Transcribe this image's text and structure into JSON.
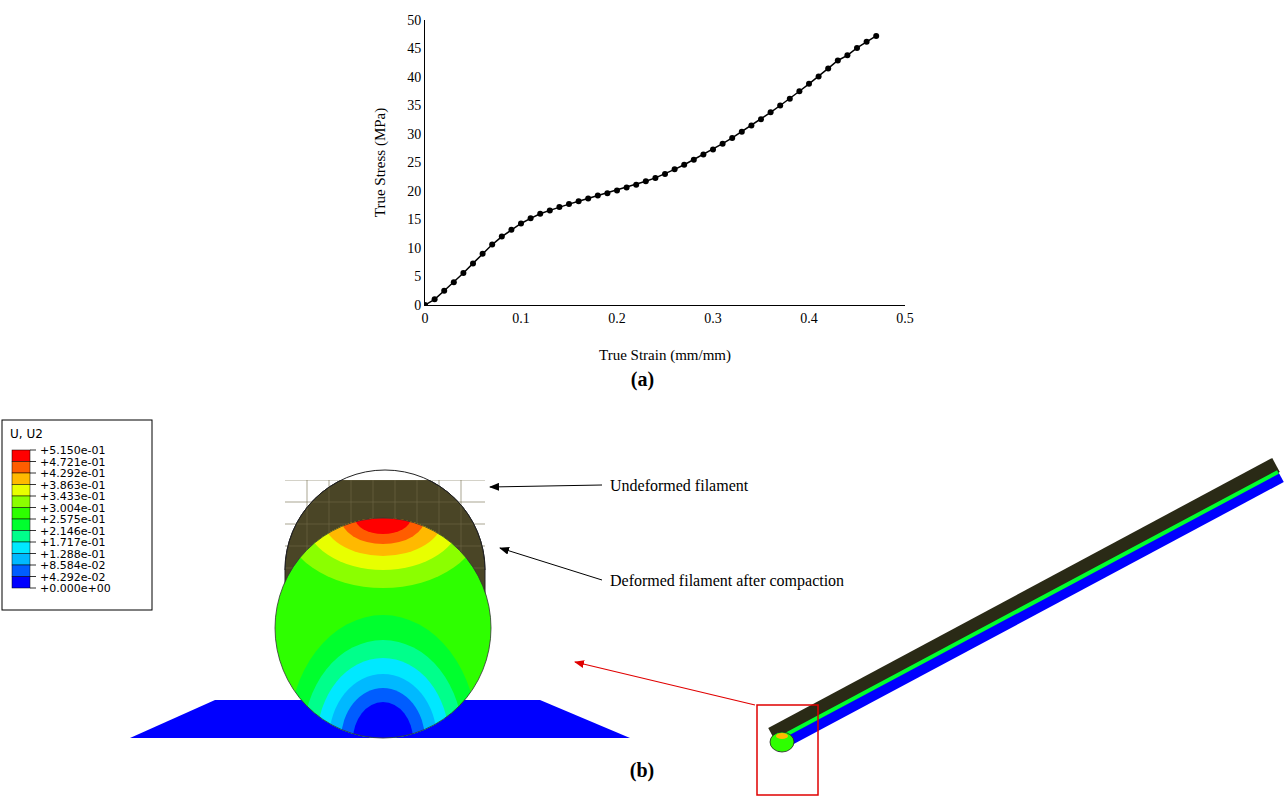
{
  "chart_data": {
    "type": "scatter",
    "marker": "circle",
    "line_style": "solid",
    "color": "#000000",
    "x_label": "True Strain (mm/mm)",
    "y_label": "True Stress (MPa)",
    "x": [
      0,
      0.01,
      0.02,
      0.03,
      0.04,
      0.05,
      0.06,
      0.07,
      0.08,
      0.09,
      0.1,
      0.11,
      0.12,
      0.13,
      0.14,
      0.15,
      0.16,
      0.17,
      0.18,
      0.19,
      0.2,
      0.21,
      0.22,
      0.23,
      0.24,
      0.25,
      0.26,
      0.27,
      0.28,
      0.29,
      0.3,
      0.31,
      0.32,
      0.33,
      0.34,
      0.35,
      0.36,
      0.37,
      0.38,
      0.39,
      0.4,
      0.41,
      0.42,
      0.43,
      0.44,
      0.45,
      0.46,
      0.47
    ],
    "values": [
      0,
      1,
      2.5,
      4,
      5.6,
      7.3,
      9,
      10.6,
      12,
      13.2,
      14.3,
      15.2,
      16,
      16.6,
      17.2,
      17.7,
      18.2,
      18.7,
      19.2,
      19.6,
      20.1,
      20.6,
      21.1,
      21.7,
      22.3,
      23,
      23.8,
      24.6,
      25.5,
      26.4,
      27.3,
      28.3,
      29.3,
      30.4,
      31.5,
      32.6,
      33.8,
      35,
      36.2,
      37.5,
      38.8,
      40.1,
      41.5,
      42.9,
      43.8,
      45.1,
      46.2,
      47.2
    ],
    "xlim": [
      0,
      0.5
    ],
    "xticks": [
      0,
      0.1,
      0.2,
      0.3,
      0.4,
      0.5
    ],
    "ylim": [
      0,
      50
    ],
    "yticks": [
      0,
      5,
      10,
      15,
      20,
      25,
      30,
      35,
      40,
      45,
      50
    ],
    "grid": false
  },
  "panel_labels": [
    "(a)",
    "(b)"
  ],
  "panel_b": {
    "contour_legend": {
      "title": "U, U2",
      "values": [
        "+5.150e-01",
        "+4.721e-01",
        "+4.292e-01",
        "+3.863e-01",
        "+3.433e-01",
        "+3.004e-01",
        "+2.575e-01",
        "+2.146e-01",
        "+1.717e-01",
        "+1.288e-01",
        "+8.584e-02",
        "+4.292e-02",
        "+0.000e+00"
      ],
      "colors": [
        "#ff0000",
        "#ff5d00",
        "#ffb900",
        "#e8ff00",
        "#8bff00",
        "#2eff00",
        "#00ff2e",
        "#00ff8b",
        "#00e8ff",
        "#00b9ff",
        "#005dff",
        "#0000ff"
      ]
    },
    "callouts": [
      "Undeformed filament",
      "Deformed filament after compaction"
    ]
  }
}
